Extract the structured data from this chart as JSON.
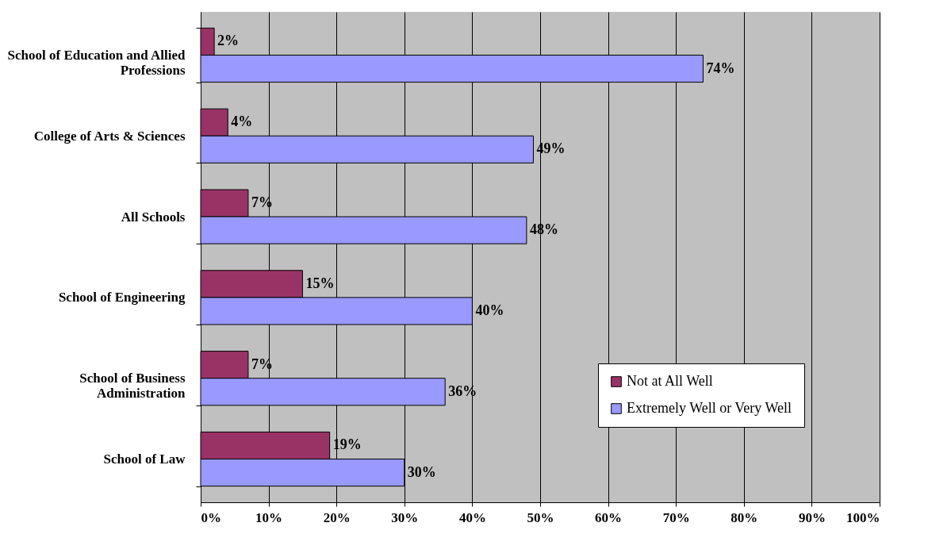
{
  "chart_data": {
    "type": "bar",
    "orientation": "horizontal",
    "categories": [
      "School of Education and Allied Professions",
      "College of Arts & Sciences",
      "All Schools",
      "School of Engineering",
      "School of Business Administration",
      "School of Law"
    ],
    "series": [
      {
        "name": "Not at All Well",
        "color": "#993366",
        "values": [
          2,
          4,
          7,
          15,
          7,
          19
        ],
        "value_labels": [
          "2%",
          "4%",
          "7%",
          "15%",
          "7%",
          "19%"
        ]
      },
      {
        "name": "Extremely Well or Very Well",
        "color": "#9999ff",
        "values": [
          74,
          49,
          48,
          40,
          36,
          30
        ],
        "value_labels": [
          "74%",
          "49%",
          "48%",
          "40%",
          "36%",
          "30%"
        ]
      }
    ],
    "xlim": [
      0,
      100
    ],
    "xticks": [
      {
        "value": 0,
        "label": "0%"
      },
      {
        "value": 10,
        "label": "10%"
      },
      {
        "value": 20,
        "label": "20%"
      },
      {
        "value": 30,
        "label": "30%"
      },
      {
        "value": 40,
        "label": "40%"
      },
      {
        "value": 50,
        "label": "50%"
      },
      {
        "value": 60,
        "label": "60%"
      },
      {
        "value": 70,
        "label": "70%"
      },
      {
        "value": 80,
        "label": "80%"
      },
      {
        "value": 90,
        "label": "90%"
      },
      {
        "value": 100,
        "label": "100%"
      }
    ],
    "grid": "x",
    "legend": "bottom right"
  }
}
